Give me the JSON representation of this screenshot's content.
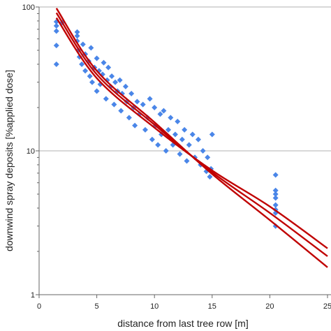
{
  "chart_data": {
    "type": "scatter",
    "title": "",
    "xlabel": "distance from last tree row [m]",
    "ylabel": "downwind spray deposits [%applied dose]",
    "xlim": [
      0,
      25
    ],
    "ylim": [
      1,
      100
    ],
    "yscale": "log",
    "x_ticks": [
      "0",
      "5",
      "10",
      "15",
      "20",
      "25"
    ],
    "y_ticks": [
      "1",
      "10",
      "100"
    ],
    "grid": "horizontal at 10 and 100",
    "colors": {
      "points": "#4a86e8",
      "curves": "#c00000",
      "grid": "#b0b0b0",
      "axis": "#666666"
    },
    "series": [
      {
        "values": [
          [
            1.5,
            40
          ],
          [
            1.5,
            54
          ],
          [
            1.5,
            68
          ],
          [
            1.5,
            74
          ],
          [
            1.5,
            79
          ],
          [
            2.0,
            78
          ],
          [
            3.3,
            67
          ],
          [
            3.3,
            63
          ],
          [
            3.3,
            58
          ],
          [
            3.4,
            50
          ],
          [
            3.5,
            45
          ],
          [
            3.7,
            40
          ],
          [
            3.8,
            55
          ],
          [
            4.0,
            36
          ],
          [
            4.0,
            47
          ],
          [
            4.3,
            42
          ],
          [
            4.4,
            33
          ],
          [
            4.5,
            52
          ],
          [
            4.6,
            30
          ],
          [
            4.8,
            38
          ],
          [
            5.0,
            44
          ],
          [
            5.0,
            26
          ],
          [
            5.2,
            36
          ],
          [
            5.3,
            29
          ],
          [
            5.5,
            34
          ],
          [
            5.6,
            41
          ],
          [
            5.8,
            23
          ],
          [
            5.9,
            31
          ],
          [
            6.0,
            38
          ],
          [
            6.2,
            28
          ],
          [
            6.3,
            33
          ],
          [
            6.5,
            21
          ],
          [
            6.6,
            30
          ],
          [
            6.8,
            26
          ],
          [
            7.0,
            31
          ],
          [
            7.1,
            19
          ],
          [
            7.2,
            25
          ],
          [
            7.5,
            28
          ],
          [
            7.6,
            22
          ],
          [
            7.8,
            17
          ],
          [
            8.0,
            25
          ],
          [
            8.2,
            20
          ],
          [
            8.3,
            15
          ],
          [
            8.5,
            22
          ],
          [
            8.7,
            18
          ],
          [
            9.0,
            21
          ],
          [
            9.2,
            14
          ],
          [
            9.4,
            17
          ],
          [
            9.6,
            23
          ],
          [
            9.8,
            12
          ],
          [
            10.0,
            20
          ],
          [
            10.1,
            15
          ],
          [
            10.3,
            11
          ],
          [
            10.5,
            18
          ],
          [
            10.6,
            13
          ],
          [
            10.8,
            19
          ],
          [
            11.0,
            10
          ],
          [
            11.2,
            14
          ],
          [
            11.4,
            17
          ],
          [
            11.6,
            11
          ],
          [
            11.8,
            13
          ],
          [
            12.0,
            16
          ],
          [
            12.2,
            9.5
          ],
          [
            12.4,
            12
          ],
          [
            12.6,
            14
          ],
          [
            12.8,
            8.5
          ],
          [
            13.0,
            11
          ],
          [
            13.3,
            13
          ],
          [
            13.5,
            9
          ],
          [
            13.8,
            12
          ],
          [
            14.0,
            8
          ],
          [
            14.2,
            10
          ],
          [
            14.5,
            7.2
          ],
          [
            14.6,
            9
          ],
          [
            14.8,
            6.6
          ],
          [
            14.9,
            7.5
          ],
          [
            15.0,
            13
          ],
          [
            20.5,
            6.8
          ],
          [
            20.5,
            5.3
          ],
          [
            20.5,
            5.0
          ],
          [
            20.5,
            4.7
          ],
          [
            20.5,
            4.2
          ],
          [
            20.5,
            3.9
          ],
          [
            20.5,
            3.7
          ],
          [
            20.5,
            3.0
          ]
        ]
      }
    ],
    "curves": [
      {
        "points": [
          [
            1.5,
            84
          ],
          [
            5,
            32
          ],
          [
            10,
            14.5
          ],
          [
            15,
            7.3
          ],
          [
            20,
            4.1
          ],
          [
            25,
            2.1
          ]
        ]
      },
      {
        "points": [
          [
            1.5,
            91
          ],
          [
            5,
            34
          ],
          [
            10,
            15.2
          ],
          [
            15,
            7.1
          ],
          [
            20,
            3.7
          ],
          [
            25,
            1.85
          ]
        ]
      },
      {
        "points": [
          [
            1.5,
            98
          ],
          [
            5,
            36
          ],
          [
            10,
            15.8
          ],
          [
            15,
            6.9
          ],
          [
            20,
            3.3
          ],
          [
            25,
            1.55
          ]
        ]
      }
    ]
  }
}
